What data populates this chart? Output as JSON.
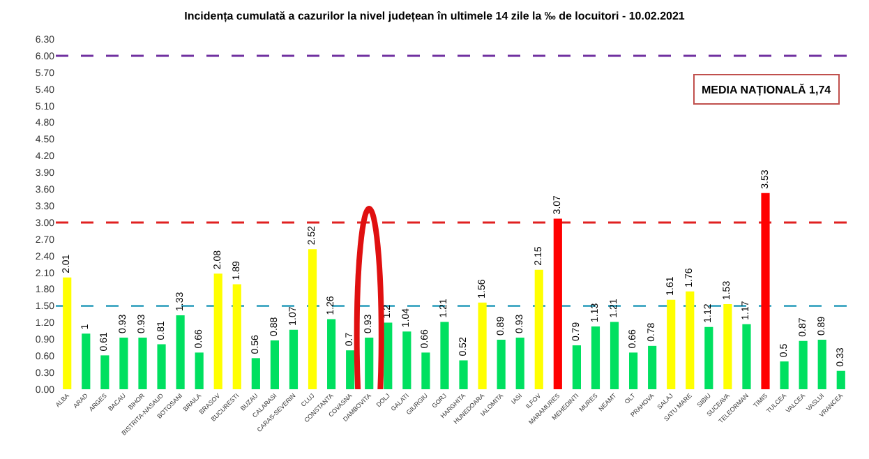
{
  "chart_data": {
    "type": "bar",
    "title": "Incidența cumulată a cazurilor la nivel județean în ultimele 14 zile la ‰ de locuitori - 10.02.2021",
    "categories": [
      "ALBA",
      "ARAD",
      "ARGES",
      "BACAU",
      "BIHOR",
      "BISTRITA-NASAUD",
      "BOTOSANI",
      "BRAILA",
      "BRASOV",
      "BUCURESTI",
      "BUZAU",
      "CALARASI",
      "CARAS-SEVERIN",
      "CLUJ",
      "CONSTANTA",
      "COVASNA",
      "DAMBOVITA",
      "DOLJ",
      "GALATI",
      "GIURGIU",
      "GORJ",
      "HARGHITA",
      "HUNEDOARA",
      "IALOMITA",
      "IASI",
      "ILFOV",
      "MARAMURES",
      "MEHEDINTI",
      "MURES",
      "NEAMT",
      "OLT",
      "PRAHOVA",
      "SALAJ",
      "SATU MARE",
      "SIBIU",
      "SUCEAVA",
      "TELEORMAN",
      "TIMIS",
      "TULCEA",
      "VALCEA",
      "VASLUI",
      "VRANCEA"
    ],
    "values": [
      2.01,
      1,
      0.61,
      0.93,
      0.93,
      0.81,
      1.33,
      0.66,
      2.08,
      1.89,
      0.56,
      0.88,
      1.07,
      2.52,
      1.26,
      0.7,
      0.93,
      1.2,
      1.04,
      0.66,
      1.21,
      0.52,
      1.56,
      0.89,
      0.93,
      2.15,
      3.07,
      0.79,
      1.13,
      1.21,
      0.66,
      0.78,
      1.61,
      1.76,
      1.12,
      1.53,
      1.17,
      3.53,
      0.5,
      0.87,
      0.89,
      0.33
    ],
    "colors": [
      "#ffff00",
      "#00e060",
      "#00e060",
      "#00e060",
      "#00e060",
      "#00e060",
      "#00e060",
      "#00e060",
      "#ffff00",
      "#ffff00",
      "#00e060",
      "#00e060",
      "#00e060",
      "#ffff00",
      "#00e060",
      "#00e060",
      "#00e060",
      "#00e060",
      "#00e060",
      "#00e060",
      "#00e060",
      "#00e060",
      "#ffff00",
      "#00e060",
      "#00e060",
      "#ffff00",
      "#ff0000",
      "#00e060",
      "#00e060",
      "#00e060",
      "#00e060",
      "#00e060",
      "#ffff00",
      "#ffff00",
      "#00e060",
      "#ffff00",
      "#00e060",
      "#ff0000",
      "#00e060",
      "#00e060",
      "#00e060",
      "#00e060"
    ],
    "ylim": [
      0,
      6.3
    ],
    "yticks": [
      {
        "value": 0,
        "label": "0.00"
      },
      {
        "value": 0.3,
        "label": "0.30"
      },
      {
        "value": 0.6,
        "label": "0.60"
      },
      {
        "value": 0.9,
        "label": "0.90"
      },
      {
        "value": 1.2,
        "label": "1.20"
      },
      {
        "value": 1.5,
        "label": "1.50"
      },
      {
        "value": 1.8,
        "label": "1.80"
      },
      {
        "value": 2.1,
        "label": "2.10"
      },
      {
        "value": 2.4,
        "label": "2.40"
      },
      {
        "value": 2.7,
        "label": "2.70"
      },
      {
        "value": 3.0,
        "label": "3.00"
      },
      {
        "value": 3.3,
        "label": "3.30"
      },
      {
        "value": 3.6,
        "label": "3.60"
      },
      {
        "value": 3.9,
        "label": "3.90"
      },
      {
        "value": 4.2,
        "label": "4.20"
      },
      {
        "value": 4.5,
        "label": "4.50"
      },
      {
        "value": 4.8,
        "label": "4.80"
      },
      {
        "value": 5.1,
        "label": "5.10"
      },
      {
        "value": 5.4,
        "label": "5.40"
      },
      {
        "value": 5.7,
        "label": "5.70"
      },
      {
        "value": 6.0,
        "label": "6.00"
      },
      {
        "value": 6.3,
        "label": "6.30"
      }
    ],
    "ref_lines": [
      {
        "axis": "y",
        "value": 6.0,
        "label": null,
        "color": "#7030a0",
        "line_style": "dashed"
      },
      {
        "axis": "y",
        "value": 3.0,
        "label": null,
        "color": "#e02020",
        "line_style": "dashed"
      },
      {
        "axis": "y",
        "value": 1.5,
        "label": null,
        "color": "#4bacc6",
        "line_style": "dashed"
      }
    ],
    "annotations": [
      "MEDIA NAȚIONALĂ 1,74"
    ],
    "data_labels": true
  }
}
